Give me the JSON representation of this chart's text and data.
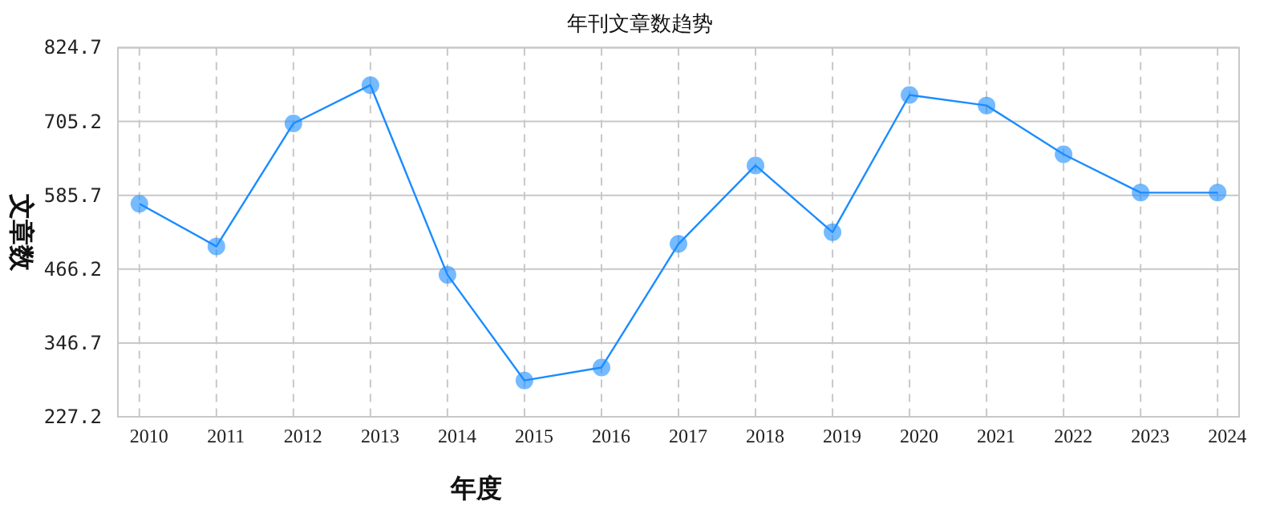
{
  "chart_data": {
    "type": "line",
    "title": "年刊文章数趋势",
    "xlabel": "年度",
    "ylabel": "文章数",
    "categories": [
      "2010",
      "2011",
      "2012",
      "2013",
      "2014",
      "2015",
      "2016",
      "2017",
      "2018",
      "2019",
      "2020",
      "2021",
      "2022",
      "2023",
      "2024"
    ],
    "series": [
      {
        "color": "#1a8cff",
        "values": [
          572,
          503,
          702,
          764,
          457,
          286,
          307,
          507,
          634,
          526,
          748,
          731,
          652,
          590,
          590
        ]
      }
    ],
    "ylim": [
      227.2,
      824.7
    ],
    "yticks": [
      227.2,
      346.7,
      466.2,
      585.7,
      705.2,
      824.7
    ],
    "grid": true,
    "marker": "circle",
    "line_style": "solid"
  }
}
